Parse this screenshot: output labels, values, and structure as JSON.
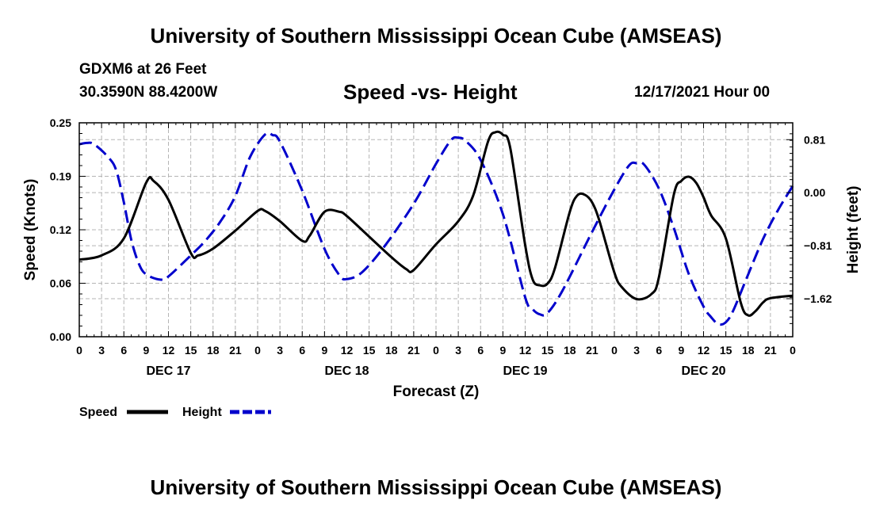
{
  "header": {
    "title": "University of Southern Mississippi Ocean Cube (AMSEAS)",
    "station": "GDXM6 at 26 Feet",
    "coords": "30.3590N  88.4200W",
    "subtitle": "Speed -vs- Height",
    "datetime": "12/17/2021 Hour 00"
  },
  "footer": {
    "title": "University of Southern Mississippi Ocean Cube (AMSEAS)"
  },
  "chart_data": {
    "type": "line",
    "xlabel": "Forecast (Z)",
    "ylabel_left": "Speed (Knots)",
    "ylabel_right": "Height (feet)",
    "x_range_hours": [
      0,
      96
    ],
    "ylim_left": [
      0,
      0.25
    ],
    "ylim_right": [
      -2.2013,
      1.0677
    ],
    "x_ticks": [
      {
        "h": 0,
        "label": "0"
      },
      {
        "h": 3,
        "label": "3"
      },
      {
        "h": 6,
        "label": "6"
      },
      {
        "h": 9,
        "label": "9"
      },
      {
        "h": 12,
        "label": "12"
      },
      {
        "h": 15,
        "label": "15"
      },
      {
        "h": 18,
        "label": "18"
      },
      {
        "h": 21,
        "label": "21"
      },
      {
        "h": 24,
        "label": "0"
      },
      {
        "h": 27,
        "label": "3"
      },
      {
        "h": 30,
        "label": "6"
      },
      {
        "h": 33,
        "label": "9"
      },
      {
        "h": 36,
        "label": "12"
      },
      {
        "h": 39,
        "label": "15"
      },
      {
        "h": 42,
        "label": "18"
      },
      {
        "h": 45,
        "label": "21"
      },
      {
        "h": 48,
        "label": "0"
      },
      {
        "h": 51,
        "label": "3"
      },
      {
        "h": 54,
        "label": "6"
      },
      {
        "h": 57,
        "label": "9"
      },
      {
        "h": 60,
        "label": "12"
      },
      {
        "h": 63,
        "label": "15"
      },
      {
        "h": 66,
        "label": "18"
      },
      {
        "h": 69,
        "label": "21"
      },
      {
        "h": 72,
        "label": "0"
      },
      {
        "h": 75,
        "label": "3"
      },
      {
        "h": 78,
        "label": "6"
      },
      {
        "h": 81,
        "label": "9"
      },
      {
        "h": 84,
        "label": "12"
      },
      {
        "h": 87,
        "label": "15"
      },
      {
        "h": 90,
        "label": "18"
      },
      {
        "h": 93,
        "label": "21"
      },
      {
        "h": 96,
        "label": "0"
      }
    ],
    "day_labels": [
      {
        "h": 12,
        "label": "DEC 17"
      },
      {
        "h": 36,
        "label": "DEC 18"
      },
      {
        "h": 60,
        "label": "DEC 19"
      },
      {
        "h": 84,
        "label": "DEC 20"
      }
    ],
    "left_ticks": [
      {
        "v": 0,
        "label": "0.00"
      },
      {
        "v": 0.0625,
        "label": "0.06"
      },
      {
        "v": 0.125,
        "label": "0.12"
      },
      {
        "v": 0.1875,
        "label": "0.19"
      },
      {
        "v": 0.25,
        "label": "0.25"
      }
    ],
    "right_ticks": [
      {
        "v": 0.81,
        "label": "0.81"
      },
      {
        "v": 0,
        "label": "0.00"
      },
      {
        "v": -0.81,
        "label": "−0.81"
      },
      {
        "v": -1.62,
        "label": "−1.62"
      }
    ],
    "series": [
      {
        "name": "Speed",
        "axis": "left",
        "color": "#000000",
        "style": "solid",
        "points": [
          [
            0,
            0.09
          ],
          [
            3,
            0.095
          ],
          [
            6,
            0.115
          ],
          [
            9,
            0.18
          ],
          [
            10,
            0.182
          ],
          [
            12,
            0.16
          ],
          [
            15,
            0.098
          ],
          [
            16,
            0.095
          ],
          [
            18,
            0.103
          ],
          [
            21,
            0.124
          ],
          [
            24,
            0.147
          ],
          [
            25,
            0.147
          ],
          [
            27,
            0.135
          ],
          [
            30,
            0.112
          ],
          [
            31,
            0.118
          ],
          [
            33,
            0.146
          ],
          [
            35,
            0.146
          ],
          [
            36,
            0.141
          ],
          [
            39,
            0.117
          ],
          [
            42,
            0.093
          ],
          [
            44,
            0.079
          ],
          [
            45,
            0.078
          ],
          [
            48,
            0.108
          ],
          [
            51,
            0.135
          ],
          [
            53,
            0.165
          ],
          [
            55,
            0.228
          ],
          [
            56,
            0.239
          ],
          [
            57,
            0.236
          ],
          [
            58,
            0.22
          ],
          [
            60,
            0.107
          ],
          [
            61,
            0.067
          ],
          [
            62,
            0.06
          ],
          [
            63,
            0.062
          ],
          [
            64,
            0.08
          ],
          [
            66,
            0.146
          ],
          [
            67,
            0.165
          ],
          [
            68,
            0.166
          ],
          [
            69,
            0.157
          ],
          [
            70,
            0.135
          ],
          [
            72,
            0.075
          ],
          [
            73,
            0.058
          ],
          [
            75,
            0.044
          ],
          [
            77,
            0.05
          ],
          [
            78,
            0.07
          ],
          [
            80,
            0.166
          ],
          [
            81,
            0.182
          ],
          [
            82,
            0.187
          ],
          [
            83,
            0.18
          ],
          [
            84,
            0.163
          ],
          [
            85,
            0.142
          ],
          [
            87,
            0.115
          ],
          [
            89,
            0.04
          ],
          [
            90,
            0.025
          ],
          [
            91,
            0.03
          ],
          [
            92,
            0.04
          ],
          [
            93,
            0.045
          ],
          [
            96,
            0.048
          ]
        ]
      },
      {
        "name": "Height",
        "axis": "right",
        "color": "#0000cc",
        "style": "dashed",
        "points": [
          [
            0,
            0.74
          ],
          [
            1,
            0.76
          ],
          [
            2,
            0.74
          ],
          [
            4,
            0.53
          ],
          [
            5,
            0.33
          ],
          [
            6,
            -0.15
          ],
          [
            7,
            -0.72
          ],
          [
            8,
            -1.08
          ],
          [
            9,
            -1.25
          ],
          [
            11,
            -1.33
          ],
          [
            12,
            -1.28
          ],
          [
            15,
            -0.96
          ],
          [
            17,
            -0.73
          ],
          [
            19,
            -0.44
          ],
          [
            21,
            -0.05
          ],
          [
            23,
            0.55
          ],
          [
            25,
            0.89
          ],
          [
            26,
            0.88
          ],
          [
            27,
            0.78
          ],
          [
            30,
            0.03
          ],
          [
            33,
            -0.86
          ],
          [
            35,
            -1.26
          ],
          [
            36,
            -1.32
          ],
          [
            38,
            -1.22
          ],
          [
            41,
            -0.83
          ],
          [
            45,
            -0.17
          ],
          [
            48,
            0.44
          ],
          [
            50,
            0.8
          ],
          [
            51,
            0.84
          ],
          [
            52,
            0.79
          ],
          [
            54,
            0.5
          ],
          [
            57,
            -0.33
          ],
          [
            60,
            -1.6
          ],
          [
            61,
            -1.78
          ],
          [
            62,
            -1.86
          ],
          [
            63,
            -1.84
          ],
          [
            65,
            -1.5
          ],
          [
            69,
            -0.6
          ],
          [
            72,
            0.05
          ],
          [
            74,
            0.42
          ],
          [
            75,
            0.45
          ],
          [
            76,
            0.43
          ],
          [
            78,
            0.06
          ],
          [
            80,
            -0.54
          ],
          [
            82,
            -1.24
          ],
          [
            84,
            -1.74
          ],
          [
            85,
            -1.9
          ],
          [
            86,
            -2.01
          ],
          [
            87,
            -1.98
          ],
          [
            88,
            -1.8
          ],
          [
            90,
            -1.25
          ],
          [
            92,
            -0.71
          ],
          [
            94,
            -0.27
          ],
          [
            96,
            0.1
          ]
        ]
      }
    ],
    "legend": [
      {
        "label": "Speed",
        "color": "#000000",
        "style": "solid"
      },
      {
        "label": "Height",
        "color": "#0000cc",
        "style": "dashed"
      }
    ],
    "grid": true
  }
}
